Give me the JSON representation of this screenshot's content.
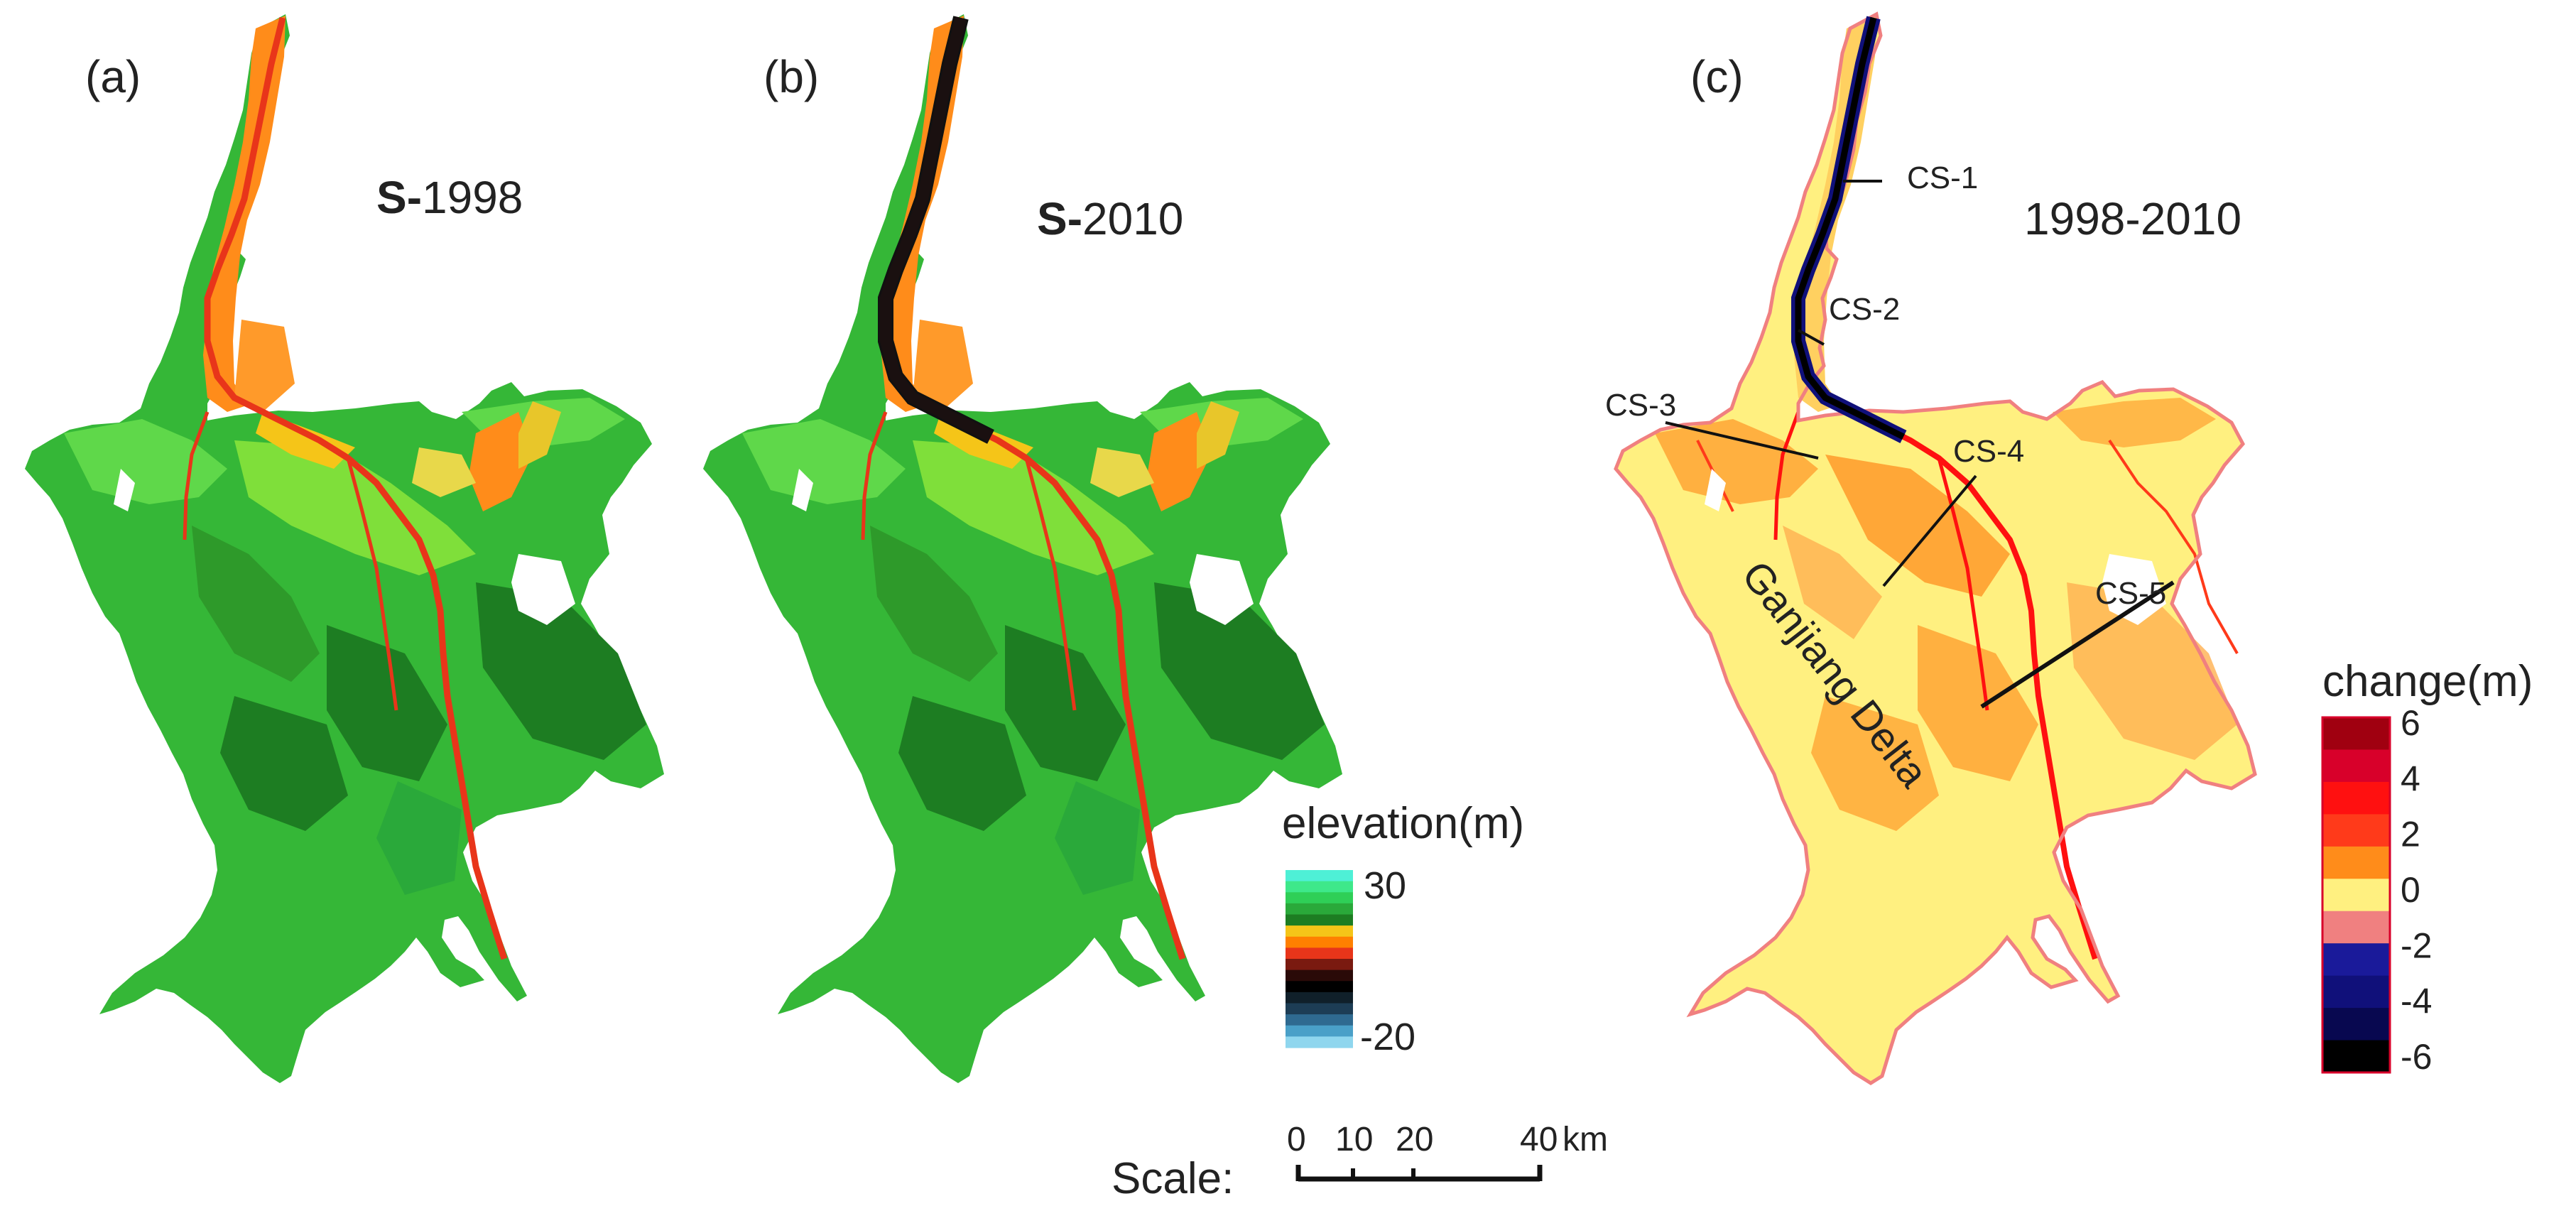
{
  "panels": {
    "a": {
      "label": "(a)",
      "title_prefix": "S-",
      "title_year": "1998"
    },
    "b": {
      "label": "(b)",
      "title_prefix": "S-",
      "title_year": "2010"
    },
    "c": {
      "label": "(c)",
      "title": "1998-2010"
    }
  },
  "cross_sections": [
    "CS-1",
    "CS-2",
    "CS-3",
    "CS-4",
    "CS-5"
  ],
  "delta_label": "Ganjiang Delta",
  "elevation_legend": {
    "title": "elevation(m)",
    "max_label": "30",
    "min_label": "-20",
    "colors": [
      "#4ef0d6",
      "#3ee88a",
      "#2fcf57",
      "#2aa93a",
      "#1d7d22",
      "#f5c518",
      "#ff8000",
      "#e8351a",
      "#7a1a10",
      "#2a0a08",
      "#000000",
      "#10202a",
      "#1d3d55",
      "#2f6a90",
      "#4aa0c8",
      "#8fd6ee"
    ]
  },
  "change_legend": {
    "title": "change(m)",
    "tick_labels": [
      "6",
      "4",
      "2",
      "0",
      "-2",
      "-4",
      "-6"
    ],
    "colors": [
      "#a00010",
      "#d8002a",
      "#ff1010",
      "#ff3a1a",
      "#ff8c1a",
      "#fff080",
      "#f08080",
      "#1a1a9a",
      "#10107a",
      "#080850",
      "#000000"
    ]
  },
  "scale_bar": {
    "label": "Scale:",
    "ticks": [
      "0",
      "10",
      "20",
      "40"
    ],
    "unit": "km"
  }
}
